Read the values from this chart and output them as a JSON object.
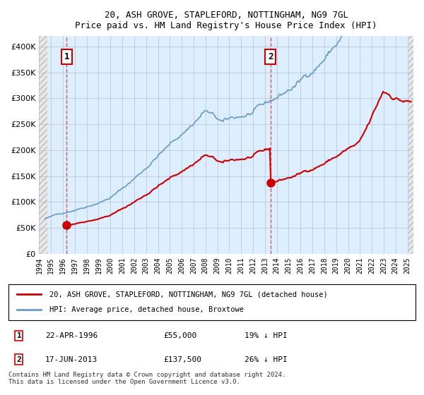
{
  "title1": "20, ASH GROVE, STAPLEFORD, NOTTINGHAM, NG9 7GL",
  "title2": "Price paid vs. HM Land Registry's House Price Index (HPI)",
  "legend_line1": "20, ASH GROVE, STAPLEFORD, NOTTINGHAM, NG9 7GL (detached house)",
  "legend_line2": "HPI: Average price, detached house, Broxtowe",
  "annotation1_label": "1",
  "annotation1_date": "22-APR-1996",
  "annotation1_price": "£55,000",
  "annotation1_hpi": "19% ↓ HPI",
  "annotation2_label": "2",
  "annotation2_date": "17-JUN-2013",
  "annotation2_price": "£137,500",
  "annotation2_hpi": "26% ↓ HPI",
  "footnote": "Contains HM Land Registry data © Crown copyright and database right 2024.\nThis data is licensed under the Open Government Licence v3.0.",
  "sale1_year": 1996.31,
  "sale1_price": 55000,
  "sale2_year": 2013.46,
  "sale2_price": 137500,
  "hpi_color": "#6699cc",
  "price_color": "#cc0000",
  "background_plot": "#ddeeff",
  "background_hatch": "#cccccc",
  "grid_color": "#aaaacc",
  "annotation_box_color": "#cc0000",
  "dashed_line_color": "#cc3333",
  "ylim": [
    0,
    420000
  ],
  "xlim_start": 1994,
  "xlim_end": 2025.5,
  "yticks": [
    0,
    50000,
    100000,
    150000,
    200000,
    250000,
    300000,
    350000,
    400000
  ],
  "ytick_labels": [
    "£0",
    "£50K",
    "£100K",
    "£150K",
    "£200K",
    "£250K",
    "£300K",
    "£350K",
    "£400K"
  ],
  "xticks": [
    1994,
    1995,
    1996,
    1997,
    1998,
    1999,
    2000,
    2001,
    2002,
    2003,
    2004,
    2005,
    2006,
    2007,
    2008,
    2009,
    2010,
    2011,
    2012,
    2013,
    2014,
    2015,
    2016,
    2017,
    2018,
    2019,
    2020,
    2021,
    2022,
    2023,
    2024,
    2025
  ]
}
